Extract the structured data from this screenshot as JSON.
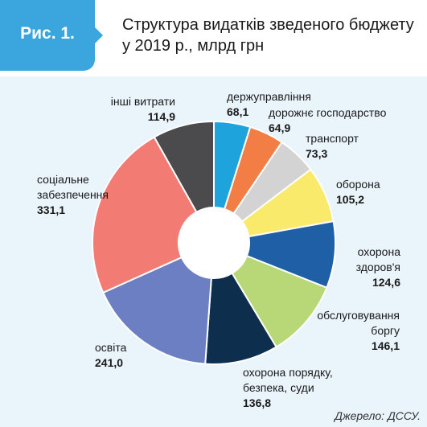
{
  "figure": {
    "label": "Рис. 1.",
    "title_line1": "Структура видатків зведеного бюджету",
    "title_line2": "у 2019 р., млрд грн",
    "source": "Джерело: ДССУ."
  },
  "colors": {
    "accent": "#3aa6dd",
    "panel_bg": "#e9f4fb"
  },
  "chart_data": {
    "type": "pie",
    "title": "Структура видатків зведеного бюджету у 2019 р., млрд грн",
    "slices": [
      {
        "label": [
          "держуправління"
        ],
        "value": 68.1,
        "value_text": "68,1",
        "color": "#1fa3dd"
      },
      {
        "label": [
          "дорожнє господарство"
        ],
        "value": 64.9,
        "value_text": "64,9",
        "color": "#f27e45"
      },
      {
        "label": [
          "транспорт"
        ],
        "value": 73.3,
        "value_text": "73,3",
        "color": "#d3d3d3"
      },
      {
        "label": [
          "оборона"
        ],
        "value": 105.2,
        "value_text": "105,2",
        "color": "#faea6c"
      },
      {
        "label": [
          "охорона",
          "здоров'я"
        ],
        "value": 124.6,
        "value_text": "124,6",
        "color": "#1e5fa6"
      },
      {
        "label": [
          "обслуговування",
          "боргу"
        ],
        "value": 146.1,
        "value_text": "146,1",
        "color": "#b8d877"
      },
      {
        "label": [
          "охорона порядку,",
          "безпека, суди"
        ],
        "value": 136.8,
        "value_text": "136,8",
        "color": "#0e2e4d"
      },
      {
        "label": [
          "освіта"
        ],
        "value": 241.0,
        "value_text": "241,0",
        "color": "#6b7fc2"
      },
      {
        "label": [
          "соціальне",
          "забезпечення"
        ],
        "value": 331.1,
        "value_text": "331,1",
        "color": "#f27b74"
      },
      {
        "label": [
          "інші витрати"
        ],
        "value": 114.9,
        "value_text": "114,9",
        "color": "#4b4b4d"
      }
    ]
  }
}
